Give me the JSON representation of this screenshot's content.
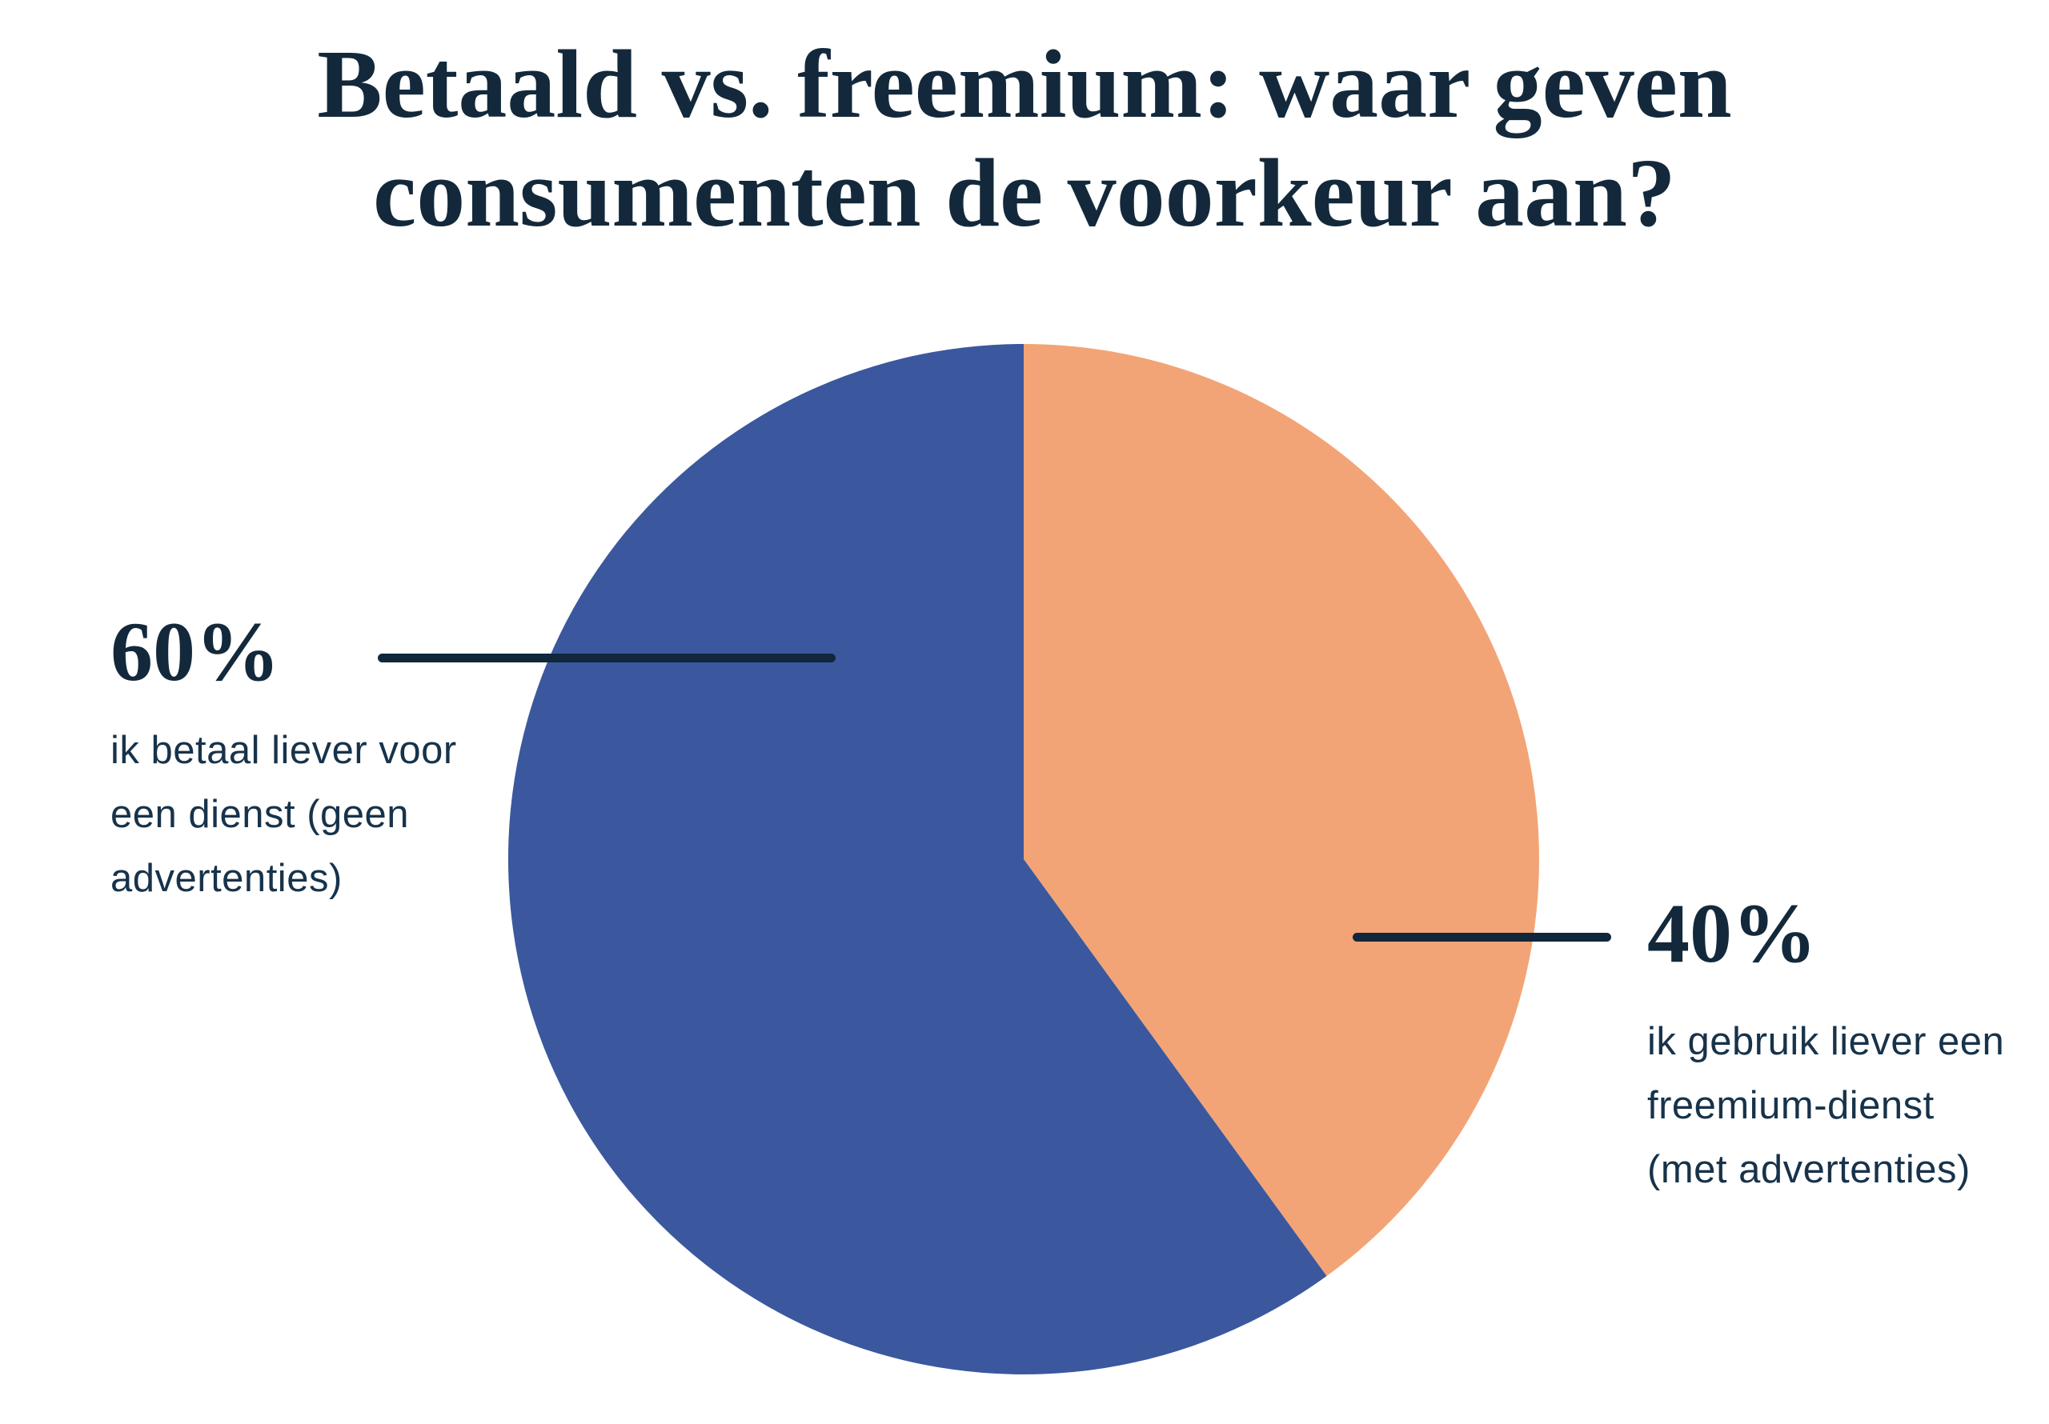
{
  "page": {
    "background": "#FFFFFF"
  },
  "title": {
    "text": "Betaald vs. freemium: waar geven consumenten de voorkeur aan?",
    "line1": "Betaald vs. freemium: waar geven",
    "line2": "consumenten de voorkeur aan?",
    "color": "#13293B"
  },
  "chart_data": {
    "type": "pie",
    "title": "Betaald vs. freemium: waar geven consumenten de voorkeur aan?",
    "start_angle_deg": 0,
    "rotation": "clockwise-from-12-oclock",
    "layout_note": "40% slice fills the right side starting at 12 o'clock clockwise to 144 degrees; 60% slice fills the remainder on the left; percentage labels sit outside with horizontal leader lines",
    "slices": [
      {
        "label": "60%",
        "value": 60,
        "description": "ik betaal liever voor een dienst (geen advertenties)",
        "color": "#3B589E",
        "callout_side": "left"
      },
      {
        "label": "40%",
        "value": 40,
        "description": "ik gebruik liever een freemium-dienst (met advertenties)",
        "color": "#F3A476",
        "callout_side": "right"
      }
    ],
    "legend_position": "none (callout labels)"
  },
  "callouts": {
    "left": {
      "pct": "60%",
      "line1": "ik betaal liever voor",
      "line2": "een dienst (geen",
      "line3": "advertenties)"
    },
    "right": {
      "pct": "40%",
      "line1": "ik gebruik liever een",
      "line2": "freemium-dienst",
      "line3": "(met advertenties)"
    }
  },
  "colors": {
    "pie_blue": "#3B589E",
    "pie_orange": "#F3A476",
    "heading_navy": "#13293B",
    "body_navy": "#17334B",
    "callout_line": "#10273C",
    "background": "#FFFFFF"
  }
}
